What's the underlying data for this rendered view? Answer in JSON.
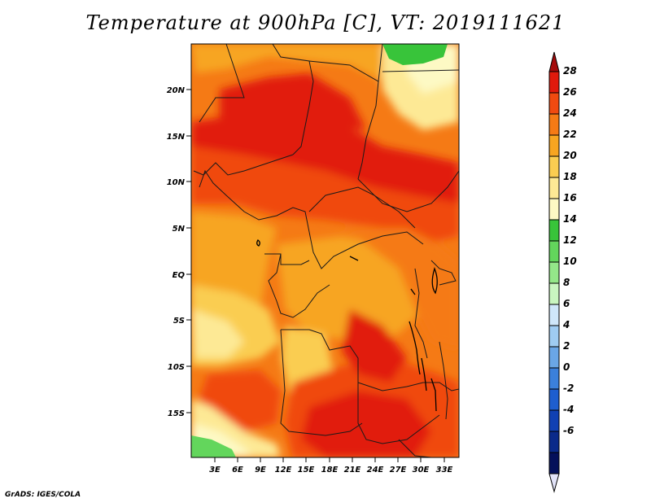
{
  "title": "Temperature at 900hPa [C], VT: 2019111621",
  "credit": "GrADS: IGES/COLA",
  "lat_labels": [
    "20N",
    "15N",
    "10N",
    "5N",
    "EQ",
    "5S",
    "10S",
    "15S"
  ],
  "lon_labels": [
    "3E",
    "6E",
    "9E",
    "12E",
    "15E",
    "18E",
    "21E",
    "24E",
    "27E",
    "30E",
    "33E"
  ],
  "colorbar": {
    "labels": [
      "28",
      "26",
      "24",
      "22",
      "20",
      "18",
      "16",
      "14",
      "12",
      "10",
      "8",
      "6",
      "4",
      "2",
      "0",
      "-2",
      "-4",
      "-6"
    ],
    "colors": [
      "#a50a0a",
      "#e11a0c",
      "#f04a10",
      "#f57a15",
      "#f7a521",
      "#facd51",
      "#fde995",
      "#fdf9c4",
      "#38c43a",
      "#63d65c",
      "#94e789",
      "#c9f6c0",
      "#cfe7fa",
      "#9fccf2",
      "#6aa6e6",
      "#3b80db",
      "#1e5ecf",
      "#1040b3",
      "#0a2a8a",
      "#04105a",
      "#e2e3f8"
    ]
  }
}
